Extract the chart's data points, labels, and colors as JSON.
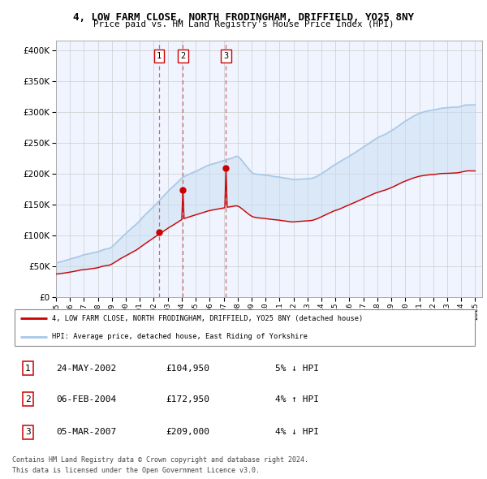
{
  "title": "4, LOW FARM CLOSE, NORTH FRODINGHAM, DRIFFIELD, YO25 8NY",
  "subtitle": "Price paid vs. HM Land Registry's House Price Index (HPI)",
  "ytick_vals": [
    0,
    50000,
    100000,
    150000,
    200000,
    250000,
    300000,
    350000,
    400000
  ],
  "ylim": [
    0,
    415000
  ],
  "xlim_start": 1995.0,
  "xlim_end": 2025.5,
  "purchase_dates": [
    2002.39,
    2004.09,
    2007.17
  ],
  "purchase_prices": [
    104950,
    172950,
    209000
  ],
  "purchase_labels": [
    "1",
    "2",
    "3"
  ],
  "legend_line1": "4, LOW FARM CLOSE, NORTH FRODINGHAM, DRIFFIELD, YO25 8NY (detached house)",
  "legend_line2": "HPI: Average price, detached house, East Riding of Yorkshire",
  "table_rows": [
    [
      "1",
      "24-MAY-2002",
      "£104,950",
      "5% ↓ HPI"
    ],
    [
      "2",
      "06-FEB-2004",
      "£172,950",
      "4% ↑ HPI"
    ],
    [
      "3",
      "05-MAR-2007",
      "£209,000",
      "4% ↓ HPI"
    ]
  ],
  "footer_line1": "Contains HM Land Registry data © Crown copyright and database right 2024.",
  "footer_line2": "This data is licensed under the Open Government Licence v3.0.",
  "hpi_color": "#a8c8e8",
  "price_color": "#cc0000",
  "vline_color": "#cc0000",
  "fill_color": "#ddeeff",
  "background_color": "#ffffff",
  "grid_color": "#cccccc"
}
